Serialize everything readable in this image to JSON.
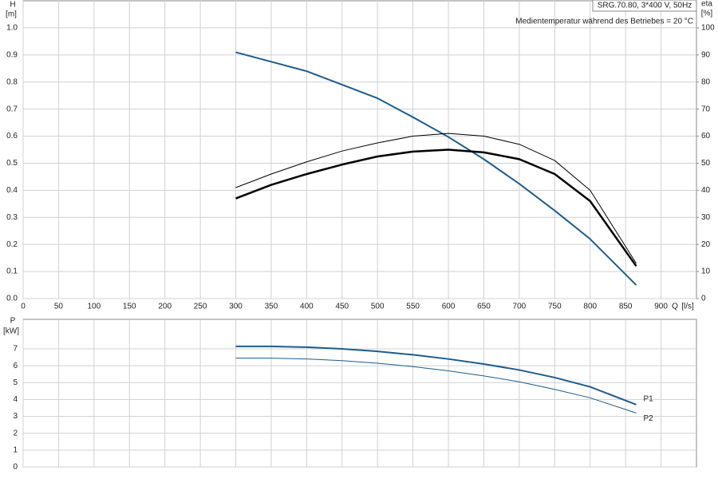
{
  "chart_data": [
    {
      "type": "line",
      "title": "SRG.70.80, 3*400 V, 50Hz",
      "annotation": "Medientemperatur während des Betriebes = 20 °C",
      "y_label": "H",
      "y_unit": "[m]",
      "y2_label": "eta",
      "y2_unit": "[%]",
      "x_label": "Q",
      "x_unit": "[l/s]",
      "x": [
        300,
        350,
        400,
        450,
        500,
        550,
        600,
        650,
        700,
        750,
        800,
        865
      ],
      "xlim": [
        0,
        950
      ],
      "xticks": [
        0,
        50,
        100,
        150,
        200,
        250,
        300,
        350,
        400,
        450,
        500,
        550,
        600,
        650,
        700,
        750,
        800,
        850,
        900
      ],
      "ylim": [
        0,
        1.1
      ],
      "yticks": [
        {
          "value": 0,
          "label": "0.0"
        },
        0.1,
        0.2,
        0.3,
        0.4,
        0.5,
        0.6,
        0.7,
        0.8,
        0.9,
        {
          "value": 1,
          "label": "1.0"
        }
      ],
      "y2lim": [
        0,
        110
      ],
      "y2ticks": [
        0,
        10,
        20,
        30,
        40,
        50,
        60,
        70,
        80,
        90,
        100
      ],
      "grid": true,
      "series": [
        {
          "color": "#1f5c8b",
          "width": 2,
          "axis": "y",
          "values": [
            0.91,
            0.875,
            0.84,
            0.79,
            0.74,
            0.67,
            0.597,
            0.515,
            0.424,
            0.325,
            0.22,
            0.05
          ]
        },
        {
          "color": "#000000",
          "width": 2.5,
          "axis": "y2",
          "values": [
            37,
            42,
            46,
            49.5,
            52.5,
            54.3,
            55,
            54,
            51.5,
            46,
            36,
            12
          ]
        },
        {
          "color": "#000000",
          "width": 1,
          "axis": "y2",
          "values": [
            41,
            46,
            50.5,
            54.5,
            57.5,
            60,
            61,
            60,
            57,
            51,
            40,
            13
          ]
        }
      ]
    },
    {
      "type": "line",
      "y_label": "P",
      "y_unit": "[kW]",
      "x": [
        300,
        350,
        400,
        450,
        500,
        550,
        600,
        650,
        700,
        750,
        800,
        865
      ],
      "xlim": [
        0,
        950
      ],
      "xticks": [
        0,
        50,
        100,
        150,
        200,
        250,
        300,
        350,
        400,
        450,
        500,
        550,
        600,
        650,
        700,
        750,
        800,
        850,
        900
      ],
      "ylim": [
        0,
        8.75
      ],
      "yticks": [
        0,
        1,
        2,
        3,
        4,
        5,
        6,
        7
      ],
      "grid": true,
      "series": [
        {
          "name": "P1",
          "color": "#1f5c8b",
          "width": 2,
          "axis": "y",
          "values": [
            7.15,
            7.15,
            7.1,
            7.0,
            6.85,
            6.65,
            6.4,
            6.1,
            5.75,
            5.3,
            4.75,
            3.7
          ]
        },
        {
          "name": "P2",
          "color": "#1f5c8b",
          "width": 1,
          "axis": "y",
          "values": [
            6.45,
            6.45,
            6.4,
            6.3,
            6.15,
            5.95,
            5.7,
            5.4,
            5.05,
            4.6,
            4.1,
            3.2
          ]
        }
      ]
    }
  ]
}
